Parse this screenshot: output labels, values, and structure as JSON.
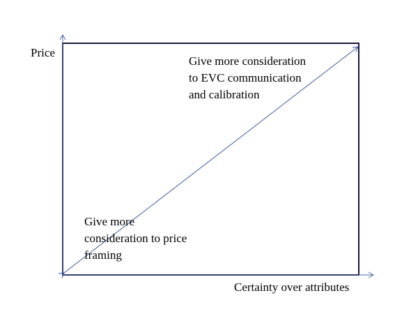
{
  "axes": {
    "y_label": "Price",
    "x_label": "Certainty over attributes"
  },
  "annotations": {
    "top_right": "Give more consideration\nto EVC communication\nand calibration",
    "bottom_left": "Give more\nconsideration to price\nframing"
  },
  "colors": {
    "frame": "#1a1a3a",
    "axis_arrow": "#4a6aa8",
    "diagonal": "#3b5a9d",
    "text": "#000000"
  }
}
